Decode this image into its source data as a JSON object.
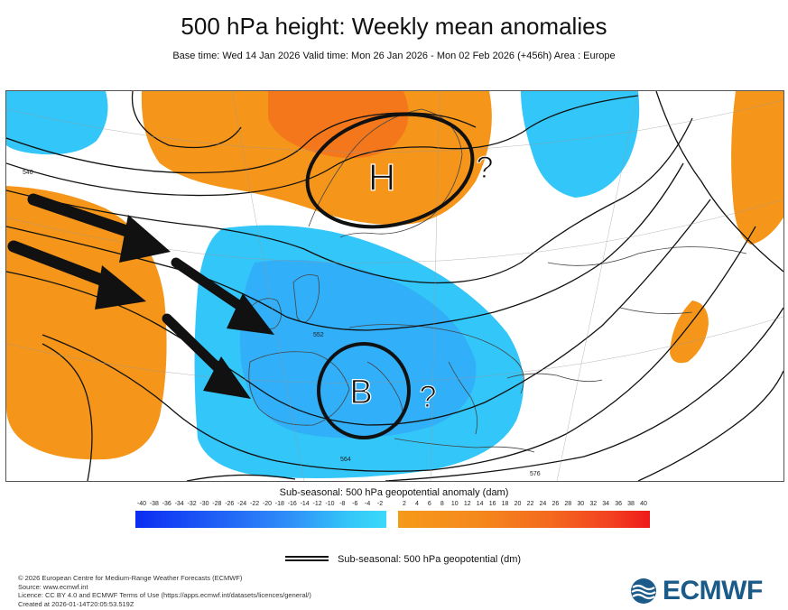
{
  "header": {
    "title": "500 hPa height: Weekly mean anomalies",
    "subtitle": "Base time: Wed 14 Jan 2026 Valid time: Mon 26 Jan 2026 - Mon 02 Feb 2026 (+456h) Area : Europe"
  },
  "map": {
    "annotations": {
      "high_label": "H",
      "low_label": "B",
      "question_mark_1": "?",
      "question_mark_2": "?"
    },
    "contour_labels": [
      "540",
      "552",
      "564",
      "576"
    ],
    "colors": {
      "negative_anomaly": "#33c6f8",
      "negative_anomaly_strong": "#2f8cf8",
      "positive_anomaly": "#f5961a",
      "positive_anomaly_strong": "#f46a1e",
      "contour": "#111111",
      "coastline": "#444444"
    }
  },
  "colorbar": {
    "label": "Sub-seasonal: 500 hPa geopotential anomaly (dam)",
    "negative_ticks": [
      "-40",
      "-38",
      "-36",
      "-34",
      "-32",
      "-30",
      "-28",
      "-26",
      "-24",
      "-22",
      "-20",
      "-18",
      "-16",
      "-14",
      "-12",
      "-10",
      "-8",
      "-6",
      "-4",
      "-2"
    ],
    "positive_ticks": [
      "2",
      "4",
      "6",
      "8",
      "10",
      "12",
      "14",
      "16",
      "18",
      "20",
      "22",
      "24",
      "26",
      "28",
      "30",
      "32",
      "34",
      "36",
      "38",
      "40"
    ]
  },
  "legend": {
    "contour_label": "Sub-seasonal: 500 hPa geopotential (dm)"
  },
  "footer": {
    "copyright": "© 2026 European Centre for Medium-Range Weather Forecasts (ECMWF)",
    "source": "Source: www.ecmwf.int",
    "licence": "Licence: CC BY 4.0 and ECMWF Terms of Use (https://apps.ecmwf.int/datasets/licences/general/)",
    "created": "Created at 2026-01-14T20:05:53.519Z",
    "logo_text": "ECMWF"
  }
}
